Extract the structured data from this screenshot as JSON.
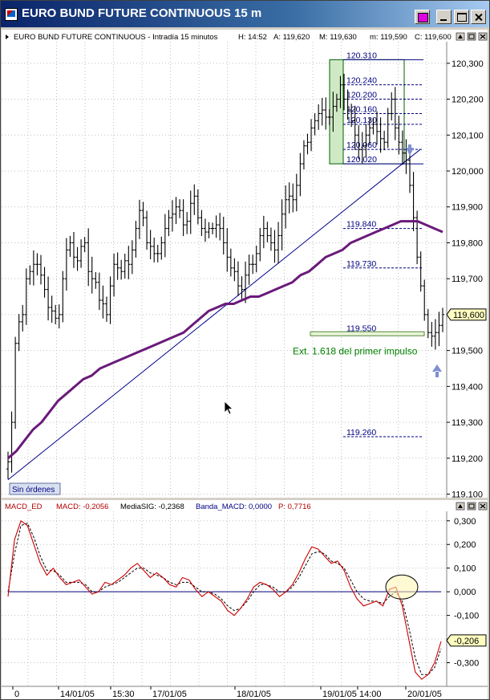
{
  "window": {
    "title": "EURO BUND FUTURE CONTINUOUS 15 m"
  },
  "main_info": {
    "name": "EURO BUND FUTURE CONTINUOUS - Intradía 15 minutos",
    "H": "H: 14:52",
    "A": "A: 119,620",
    "M": "M: 119,630",
    "m": "m: 119,590",
    "C": "C: 119,600"
  },
  "orders_badge": "Sin órdenes",
  "macd_info": {
    "name": "MACD_ED",
    "macd": "MACD: -0,2056",
    "media": "MediaSIG: -0,2368",
    "banda": "Banda_MACD: 0,0000",
    "p": "P: 0,7716"
  },
  "colors": {
    "bars": "#000000",
    "moving_average": "#6a1a7a",
    "trendline": "#00008b",
    "fib_label": "#000080",
    "macd_line": "#cc0000",
    "signal_line": "#000000",
    "zero_line": "#000080",
    "annotation": "#008000",
    "arrow": "#7f8fd0"
  },
  "chart_data": [
    {
      "type": "bar",
      "ylim": [
        119.09,
        120.36
      ],
      "y_ticks": [
        "120,300",
        "120,200",
        "120,100",
        "120,000",
        "119,900",
        "119,800",
        "119,700",
        "119,600",
        "119,500",
        "119,400",
        "119,300",
        "119,200",
        "119,100"
      ],
      "last_price_label": "119,600",
      "x_ticks": [
        "0",
        "14/01/05",
        "15:30",
        "17/01/05",
        "18/01/05",
        "19/01/05",
        "14:00",
        "20/01/05"
      ],
      "grid": true,
      "fib_levels": [
        {
          "label": "120.310",
          "value": 120.31
        },
        {
          "label": "120.240",
          "value": 120.24
        },
        {
          "label": "120.200",
          "value": 120.2
        },
        {
          "label": "120.160",
          "value": 120.16
        },
        {
          "label": "120.130",
          "value": 120.13
        },
        {
          "label": "120.060",
          "value": 120.06
        },
        {
          "label": "120.020",
          "value": 120.02
        },
        {
          "label": "119.840",
          "value": 119.84
        },
        {
          "label": "119.730",
          "value": 119.73
        },
        {
          "label": "119.550",
          "value": 119.55
        },
        {
          "label": "119.260",
          "value": 119.26
        }
      ],
      "annotation": "Ext. 1.618 del primer impulso",
      "close_series": [
        119.19,
        119.3,
        119.52,
        119.58,
        119.6,
        119.7,
        119.72,
        119.74,
        119.74,
        119.71,
        119.67,
        119.62,
        119.61,
        119.59,
        119.6,
        119.7,
        119.78,
        119.8,
        119.76,
        119.75,
        119.79,
        119.8,
        119.72,
        119.7,
        119.69,
        119.64,
        119.63,
        119.6,
        119.68,
        119.74,
        119.73,
        119.72,
        119.75,
        119.74,
        119.78,
        119.84,
        119.89,
        119.87,
        119.8,
        119.79,
        119.77,
        119.77,
        119.8,
        119.84,
        119.87,
        119.88,
        119.9,
        119.89,
        119.85,
        119.86,
        119.91,
        119.93,
        119.87,
        119.84,
        119.83,
        119.84,
        119.84,
        119.85,
        119.84,
        119.8,
        119.76,
        119.73,
        119.72,
        119.68,
        119.67,
        119.71,
        119.74,
        119.74,
        119.77,
        119.82,
        119.84,
        119.82,
        119.8,
        119.78,
        119.82,
        119.88,
        119.92,
        119.93,
        119.92,
        119.96,
        120.02,
        120.07,
        120.08,
        120.12,
        120.14,
        120.16,
        120.17,
        120.15,
        120.15,
        120.18,
        120.2,
        120.24,
        120.2,
        120.17,
        120.14,
        120.1,
        120.06,
        120.07,
        120.1,
        120.12,
        120.13,
        120.11,
        120.09,
        120.08,
        120.16,
        120.2,
        120.12,
        120.08,
        120.05,
        120.03,
        119.96,
        119.87,
        119.76,
        119.68,
        119.6,
        119.55,
        119.54,
        119.55,
        119.57,
        119.6
      ],
      "ma_series": [
        119.2,
        119.22,
        119.25,
        119.28,
        119.3,
        119.33,
        119.36,
        119.38,
        119.4,
        119.42,
        119.43,
        119.45,
        119.46,
        119.47,
        119.48,
        119.49,
        119.5,
        119.51,
        119.52,
        119.53,
        119.54,
        119.55,
        119.57,
        119.59,
        119.61,
        119.62,
        119.63,
        119.63,
        119.64,
        119.65,
        119.65,
        119.66,
        119.67,
        119.68,
        119.69,
        119.71,
        119.72,
        119.74,
        119.76,
        119.77,
        119.78,
        119.8,
        119.81,
        119.82,
        119.83,
        119.84,
        119.85,
        119.86,
        119.86,
        119.86,
        119.85,
        119.84,
        119.83
      ]
    },
    {
      "type": "line",
      "ylim": [
        -0.4,
        0.34
      ],
      "y_ticks": [
        "0,300",
        "0,200",
        "0,100",
        "0,000",
        "-0,100",
        "-0,200",
        "-0,300"
      ],
      "last_value_label": "-0,206",
      "series": [
        {
          "values": [
            -0.02,
            0.22,
            0.3,
            0.28,
            0.2,
            0.12,
            0.07,
            0.1,
            0.06,
            0.03,
            0.04,
            0.05,
            0.02,
            -0.01,
            0.0,
            0.04,
            0.03,
            0.05,
            0.07,
            0.1,
            0.12,
            0.09,
            0.06,
            0.08,
            0.06,
            0.03,
            0.02,
            0.06,
            0.05,
            0.01,
            -0.02,
            0.0,
            -0.02,
            -0.04,
            -0.08,
            -0.1,
            -0.07,
            -0.03,
            0.02,
            0.04,
            0.03,
            0.01,
            -0.02,
            0.0,
            0.03,
            0.08,
            0.14,
            0.19,
            0.18,
            0.15,
            0.12,
            0.13,
            0.09,
            0.02,
            -0.03,
            -0.06,
            -0.05,
            -0.04,
            -0.06,
            0.01,
            0.02,
            -0.06,
            -0.2,
            -0.34,
            -0.37,
            -0.35,
            -0.3,
            -0.21
          ]
        },
        {
          "values": [
            0.0,
            0.16,
            0.28,
            0.29,
            0.23,
            0.15,
            0.09,
            0.09,
            0.07,
            0.04,
            0.04,
            0.04,
            0.03,
            0.0,
            0.0,
            0.02,
            0.03,
            0.04,
            0.06,
            0.08,
            0.1,
            0.1,
            0.08,
            0.07,
            0.06,
            0.04,
            0.03,
            0.04,
            0.04,
            0.02,
            0.0,
            0.0,
            -0.01,
            -0.03,
            -0.06,
            -0.08,
            -0.07,
            -0.04,
            0.0,
            0.03,
            0.03,
            0.02,
            0.0,
            0.0,
            0.02,
            0.06,
            0.11,
            0.16,
            0.17,
            0.16,
            0.13,
            0.12,
            0.1,
            0.05,
            0.0,
            -0.03,
            -0.04,
            -0.04,
            -0.05,
            -0.02,
            0.0,
            -0.04,
            -0.15,
            -0.28,
            -0.35,
            -0.35,
            -0.32,
            -0.24
          ]
        }
      ]
    }
  ]
}
